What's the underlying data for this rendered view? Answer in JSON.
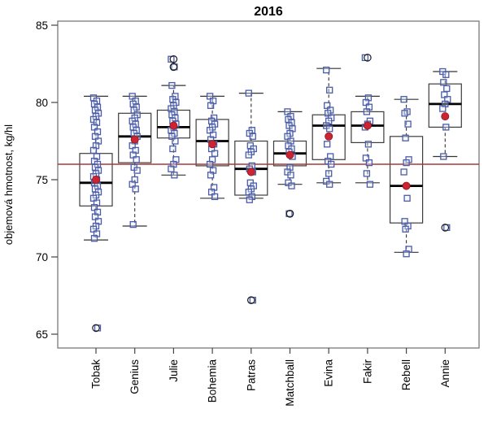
{
  "chart_data": {
    "type": "boxplot",
    "title": "2016",
    "ylabel": "objemová hmotnost, kg/hl",
    "xlabel": "",
    "ylim": [
      64.1,
      85.3
    ],
    "yticks": [
      65,
      70,
      75,
      80,
      85
    ],
    "grid": false,
    "legend": "none",
    "reference_line": {
      "value": 76.0,
      "color": "#a43c3c"
    },
    "categories": [
      "Tobak",
      "Genius",
      "Julie",
      "Bohemia",
      "Patras",
      "Matchball",
      "Evina",
      "Fakir",
      "Rebell",
      "Annie"
    ],
    "series": [
      {
        "name": "Tobak",
        "whisker_low": 71.1,
        "q1": 73.3,
        "median": 74.8,
        "q3": 76.7,
        "whisker_high": 80.4,
        "mean": 75.0,
        "outliers": [
          65.4
        ],
        "points": [
          80.3,
          80.1,
          79.9,
          79.7,
          79.5,
          79.3,
          79.1,
          78.9,
          78.7,
          78.4,
          78.1,
          77.8,
          77.5,
          77.2,
          76.9,
          76.5,
          76.2,
          76.0,
          75.8,
          75.6,
          75.4,
          75.2,
          75.0,
          74.8,
          74.6,
          74.4,
          74.2,
          74.0,
          73.8,
          73.5,
          73.2,
          72.9,
          72.6,
          72.3,
          72.0,
          71.8,
          71.5,
          71.2,
          65.4
        ]
      },
      {
        "name": "Genius",
        "whisker_low": 72.0,
        "q1": 76.1,
        "median": 77.8,
        "q3": 79.3,
        "whisker_high": 80.4,
        "mean": 77.6,
        "outliers": [],
        "points": [
          80.4,
          80.1,
          79.9,
          79.7,
          79.5,
          79.2,
          79.0,
          78.8,
          78.6,
          78.4,
          78.2,
          78.0,
          77.8,
          77.5,
          77.2,
          76.9,
          76.6,
          76.3,
          75.8,
          75.6,
          75.0,
          74.7,
          74.4,
          72.1
        ]
      },
      {
        "name": "Julie",
        "whisker_low": 75.3,
        "q1": 77.7,
        "median": 78.4,
        "q3": 79.5,
        "whisker_high": 81.1,
        "mean": 78.5,
        "outliers": [
          82.3,
          82.8
        ],
        "points": [
          82.8,
          82.3,
          81.1,
          80.4,
          80.2,
          80.0,
          79.8,
          79.6,
          79.4,
          79.2,
          79.0,
          78.8,
          78.6,
          78.4,
          78.2,
          78.0,
          77.8,
          77.5,
          77.0,
          76.3,
          76.0,
          75.7,
          75.3
        ]
      },
      {
        "name": "Bohemia",
        "whisker_low": 73.8,
        "q1": 75.9,
        "median": 77.5,
        "q3": 78.9,
        "whisker_high": 80.4,
        "mean": 77.3,
        "outliers": [],
        "points": [
          80.4,
          80.1,
          79.8,
          79.0,
          78.8,
          78.6,
          78.4,
          78.2,
          77.9,
          77.6,
          77.3,
          77.0,
          76.7,
          76.3,
          76.0,
          75.6,
          75.3,
          74.5,
          74.2,
          73.9
        ]
      },
      {
        "name": "Patras",
        "whisker_low": 73.8,
        "q1": 74.0,
        "median": 75.7,
        "q3": 77.5,
        "whisker_high": 80.6,
        "mean": 75.5,
        "outliers": [
          67.2
        ],
        "points": [
          80.6,
          78.2,
          78.0,
          77.8,
          77.2,
          77.0,
          76.8,
          76.6,
          75.9,
          75.7,
          75.5,
          74.8,
          74.6,
          74.4,
          74.2,
          73.9,
          73.7,
          67.2
        ]
      },
      {
        "name": "Matchball",
        "whisker_low": 74.7,
        "q1": 75.9,
        "median": 76.7,
        "q3": 77.5,
        "whisker_high": 79.4,
        "mean": 76.6,
        "outliers": [
          72.8
        ],
        "points": [
          79.4,
          79.1,
          78.9,
          78.7,
          78.5,
          78.3,
          78.0,
          77.8,
          77.5,
          77.2,
          77.0,
          76.8,
          76.5,
          75.8,
          75.5,
          75.3,
          74.8,
          74.6,
          72.8
        ]
      },
      {
        "name": "Evina",
        "whisker_low": 74.8,
        "q1": 76.3,
        "median": 78.5,
        "q3": 79.2,
        "whisker_high": 82.2,
        "mean": 77.8,
        "outliers": [],
        "points": [
          82.1,
          80.8,
          79.8,
          79.5,
          79.3,
          79.0,
          78.8,
          78.5,
          78.3,
          77.3,
          76.5,
          76.2,
          76.0,
          75.4,
          74.9,
          74.7
        ]
      },
      {
        "name": "Fakir",
        "whisker_low": 74.8,
        "q1": 77.4,
        "median": 78.5,
        "q3": 79.4,
        "whisker_high": 80.4,
        "mean": 78.5,
        "outliers": [
          82.9
        ],
        "points": [
          82.9,
          80.3,
          80.0,
          79.7,
          79.4,
          78.8,
          78.6,
          78.4,
          77.3,
          76.4,
          76.1,
          75.4,
          74.7
        ]
      },
      {
        "name": "Rebell",
        "whisker_low": 70.3,
        "q1": 72.2,
        "median": 74.6,
        "q3": 77.8,
        "whisker_high": 80.2,
        "mean": 74.6,
        "outliers": [],
        "points": [
          80.2,
          79.4,
          79.3,
          78.6,
          77.7,
          76.3,
          76.1,
          75.5,
          73.8,
          72.3,
          72.0,
          71.8,
          70.5,
          70.2
        ]
      },
      {
        "name": "Annie",
        "whisker_low": 76.5,
        "q1": 78.4,
        "median": 79.9,
        "q3": 81.2,
        "whisker_high": 82.0,
        "mean": 79.1,
        "outliers": [
          71.9
        ],
        "points": [
          82.0,
          81.8,
          81.3,
          80.9,
          80.5,
          80.2,
          79.9,
          79.6,
          78.4,
          76.5,
          71.9
        ]
      }
    ],
    "styles": {
      "frame_color": "#7a7a7a",
      "tick_color": "#444444",
      "box_color": "#3c3c3c",
      "median_color": "#000000",
      "whisker_color": "#333333",
      "point_stroke": "#4a5ca8",
      "point_fill": "#ebeffa",
      "outlier_circle_color": "#1a1a1a",
      "mean_fill": "#cd2333",
      "mean_stroke": "#8b1a1a"
    }
  }
}
